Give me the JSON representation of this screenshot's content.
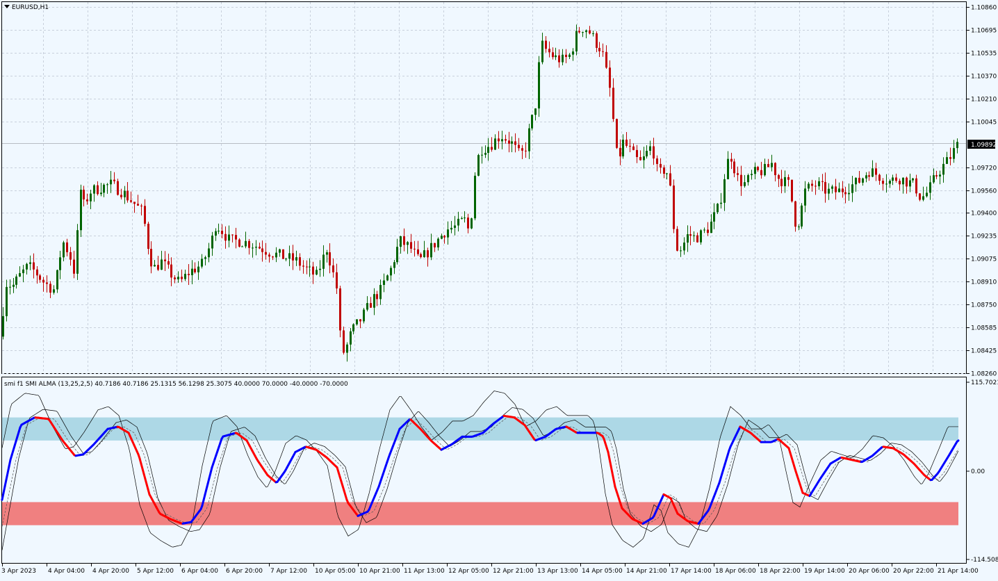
{
  "window": {
    "symbol_label": "EURUSD,H1"
  },
  "price_axis": {
    "ticks": [
      "1.10860",
      "1.10695",
      "1.10535",
      "1.10370",
      "1.10210",
      "1.10045",
      "1.09720",
      "1.09560",
      "1.09400",
      "1.09235",
      "1.09075",
      "1.08910",
      "1.08750",
      "1.08585",
      "1.08425",
      "1.08260"
    ],
    "current_price": "1.09892"
  },
  "indicator": {
    "label": "smi f1 SMI ALMA (13,25,2,5) 40.7186 40.7186 25.1315 56.1298 25.3075 40.0000 70.0000 -40.0000 -70.0000",
    "axis_top": "115.7021",
    "axis_zero": "0.00",
    "axis_bottom": "-114.5082",
    "upper_zone": [
      40,
      70
    ],
    "lower_zone": [
      -40,
      -70
    ]
  },
  "time_axis": {
    "labels": [
      "3 Apr 2023",
      "4 Apr 04:00",
      "4 Apr 20:00",
      "5 Apr 12:00",
      "6 Apr 04:00",
      "6 Apr 20:00",
      "7 Apr 12:00",
      "10 Apr 05:00",
      "10 Apr 21:00",
      "11 Apr 13:00",
      "12 Apr 05:00",
      "12 Apr 21:00",
      "13 Apr 13:00",
      "14 Apr 05:00",
      "14 Apr 21:00",
      "17 Apr 14:00",
      "18 Apr 06:00",
      "18 Apr 22:00",
      "19 Apr 14:00",
      "20 Apr 06:00",
      "20 Apr 22:00",
      "21 Apr 14:00"
    ]
  },
  "colors": {
    "background": "#f0f8ff",
    "bull_candle": "#006400",
    "bear_candle": "#c00000",
    "smi_up": "#0000ff",
    "smi_down": "#ff0000",
    "upper_zone": "#add8e6",
    "lower_zone": "#f08080",
    "grid": "#c8d0dc"
  },
  "chart_data": [
    {
      "type": "candlestick",
      "title": "EURUSD,H1",
      "ylim": [
        1.0826,
        1.1086
      ],
      "close_path": [
        [
          0,
          1.0852
        ],
        [
          8,
          1.089
        ],
        [
          18,
          1.0888
        ],
        [
          28,
          1.0895
        ],
        [
          40,
          1.0902
        ],
        [
          50,
          1.0898
        ],
        [
          64,
          1.089
        ],
        [
          78,
          1.0885
        ],
        [
          90,
          1.092
        ],
        [
          100,
          1.091
        ],
        [
          108,
          1.0895
        ],
        [
          114,
          1.096
        ],
        [
          120,
          1.0945
        ],
        [
          130,
          1.0955
        ],
        [
          145,
          1.0958
        ],
        [
          160,
          1.096
        ],
        [
          175,
          1.0955
        ],
        [
          190,
          1.0948
        ],
        [
          205,
          1.094
        ],
        [
          212,
          1.0918
        ],
        [
          220,
          1.09
        ],
        [
          232,
          1.0905
        ],
        [
          245,
          1.0897
        ],
        [
          258,
          1.089
        ],
        [
          272,
          1.0898
        ],
        [
          290,
          1.0903
        ],
        [
          303,
          1.0918
        ],
        [
          310,
          1.0932
        ],
        [
          318,
          1.0928
        ],
        [
          330,
          1.092
        ],
        [
          345,
          1.092
        ],
        [
          360,
          1.0918
        ],
        [
          375,
          1.0915
        ],
        [
          388,
          1.0912
        ],
        [
          398,
          1.091
        ],
        [
          412,
          1.0908
        ],
        [
          425,
          1.0906
        ],
        [
          440,
          1.09
        ],
        [
          455,
          1.0895
        ],
        [
          470,
          1.0915
        ],
        [
          485,
          1.0885
        ],
        [
          490,
          1.0845
        ],
        [
          495,
          1.084
        ],
        [
          505,
          1.0855
        ],
        [
          520,
          1.0865
        ],
        [
          535,
          1.0878
        ],
        [
          548,
          1.0885
        ],
        [
          562,
          1.09
        ],
        [
          575,
          1.092
        ],
        [
          590,
          1.0915
        ],
        [
          603,
          1.0905
        ],
        [
          615,
          1.0912
        ],
        [
          628,
          1.092
        ],
        [
          642,
          1.0928
        ],
        [
          655,
          1.093
        ],
        [
          668,
          1.0935
        ],
        [
          676,
          1.0925
        ],
        [
          682,
          1.0965
        ],
        [
          690,
          1.0985
        ],
        [
          705,
          1.0988
        ],
        [
          720,
          1.0995
        ],
        [
          735,
          1.099
        ],
        [
          748,
          1.098
        ],
        [
          755,
          1.0985
        ],
        [
          762,
          1.1
        ],
        [
          770,
          1.1015
        ],
        [
          778,
          1.106
        ],
        [
          786,
          1.1055
        ],
        [
          798,
          1.105
        ],
        [
          810,
          1.1048
        ],
        [
          820,
          1.1052
        ],
        [
          830,
          1.1068
        ],
        [
          840,
          1.1072
        ],
        [
          848,
          1.1068
        ],
        [
          858,
          1.106
        ],
        [
          866,
          1.1055
        ],
        [
          872,
          1.104
        ],
        [
          878,
          1.1025
        ],
        [
          884,
          1.0995
        ],
        [
          888,
          1.0975
        ],
        [
          896,
          1.099
        ],
        [
          905,
          1.0985
        ],
        [
          914,
          1.0978
        ],
        [
          922,
          1.0975
        ],
        [
          930,
          1.0982
        ],
        [
          938,
          1.0988
        ],
        [
          945,
          1.097
        ],
        [
          950,
          1.0968
        ],
        [
          958,
          1.0972
        ],
        [
          965,
          1.0955
        ],
        [
          970,
          1.0925
        ],
        [
          975,
          1.0912
        ],
        [
          980,
          1.0915
        ],
        [
          990,
          1.0925
        ],
        [
          1000,
          1.0922
        ],
        [
          1010,
          1.0925
        ],
        [
          1020,
          1.093
        ],
        [
          1035,
          1.0945
        ],
        [
          1045,
          1.0975
        ],
        [
          1052,
          1.098
        ],
        [
          1060,
          1.0965
        ],
        [
          1070,
          1.096
        ],
        [
          1085,
          1.0968
        ],
        [
          1100,
          1.097
        ],
        [
          1110,
          1.0975
        ],
        [
          1118,
          1.0965
        ],
        [
          1128,
          1.0962
        ],
        [
          1135,
          1.096
        ],
        [
          1140,
          1.0945
        ],
        [
          1145,
          1.093
        ],
        [
          1150,
          1.0935
        ],
        [
          1158,
          1.0955
        ],
        [
          1165,
          1.0958
        ],
        [
          1175,
          1.096
        ],
        [
          1190,
          1.0955
        ],
        [
          1205,
          1.0955
        ],
        [
          1220,
          1.0958
        ],
        [
          1235,
          1.0962
        ],
        [
          1250,
          1.097
        ],
        [
          1258,
          1.0968
        ],
        [
          1268,
          1.0965
        ],
        [
          1280,
          1.0962
        ],
        [
          1292,
          1.0965
        ],
        [
          1305,
          1.0962
        ],
        [
          1315,
          1.096
        ],
        [
          1325,
          1.095
        ],
        [
          1335,
          1.0955
        ],
        [
          1345,
          1.0965
        ],
        [
          1355,
          1.0972
        ],
        [
          1365,
          1.0978
        ],
        [
          1378,
          1.0989
        ]
      ]
    },
    {
      "type": "line",
      "title": "smi f1 SMI ALMA (13,25,2,5)",
      "ylim": [
        -114.5082,
        115.7021
      ],
      "bands": [
        [
          40,
          70
        ],
        [
          -40,
          -70
        ]
      ],
      "smi_path": [
        [
          0,
          -50
        ],
        [
          15,
          15
        ],
        [
          30,
          60
        ],
        [
          50,
          70
        ],
        [
          70,
          68
        ],
        [
          90,
          40
        ],
        [
          108,
          20
        ],
        [
          120,
          22
        ],
        [
          135,
          35
        ],
        [
          155,
          55
        ],
        [
          170,
          58
        ],
        [
          185,
          50
        ],
        [
          200,
          20
        ],
        [
          215,
          -30
        ],
        [
          230,
          -55
        ],
        [
          245,
          -62
        ],
        [
          262,
          -68
        ],
        [
          275,
          -66
        ],
        [
          290,
          -48
        ],
        [
          305,
          5
        ],
        [
          320,
          45
        ],
        [
          340,
          50
        ],
        [
          355,
          40
        ],
        [
          370,
          15
        ],
        [
          385,
          -5
        ],
        [
          398,
          -15
        ],
        [
          410,
          0
        ],
        [
          425,
          25
        ],
        [
          440,
          32
        ],
        [
          455,
          28
        ],
        [
          470,
          18
        ],
        [
          485,
          5
        ],
        [
          500,
          -40
        ],
        [
          515,
          -58
        ],
        [
          530,
          -52
        ],
        [
          545,
          -20
        ],
        [
          560,
          20
        ],
        [
          575,
          55
        ],
        [
          590,
          68
        ],
        [
          605,
          55
        ],
        [
          620,
          40
        ],
        [
          635,
          28
        ],
        [
          650,
          35
        ],
        [
          665,
          45
        ],
        [
          680,
          45
        ],
        [
          695,
          50
        ],
        [
          710,
          62
        ],
        [
          725,
          72
        ],
        [
          740,
          70
        ],
        [
          755,
          60
        ],
        [
          770,
          40
        ],
        [
          785,
          45
        ],
        [
          800,
          55
        ],
        [
          815,
          58
        ],
        [
          830,
          50
        ],
        [
          845,
          50
        ],
        [
          860,
          50
        ],
        [
          868,
          45
        ],
        [
          875,
          25
        ],
        [
          885,
          -20
        ],
        [
          895,
          -48
        ],
        [
          910,
          -62
        ],
        [
          925,
          -68
        ],
        [
          940,
          -60
        ],
        [
          955,
          -30
        ],
        [
          965,
          -35
        ],
        [
          975,
          -55
        ],
        [
          990,
          -65
        ],
        [
          1005,
          -68
        ],
        [
          1020,
          -50
        ],
        [
          1035,
          -15
        ],
        [
          1050,
          30
        ],
        [
          1065,
          58
        ],
        [
          1080,
          50
        ],
        [
          1095,
          38
        ],
        [
          1110,
          38
        ],
        [
          1120,
          42
        ],
        [
          1135,
          30
        ],
        [
          1145,
          0
        ],
        [
          1155,
          -28
        ],
        [
          1165,
          -32
        ],
        [
          1180,
          -10
        ],
        [
          1195,
          10
        ],
        [
          1210,
          18
        ],
        [
          1225,
          15
        ],
        [
          1240,
          12
        ],
        [
          1255,
          20
        ],
        [
          1270,
          32
        ],
        [
          1285,
          30
        ],
        [
          1300,
          22
        ],
        [
          1315,
          10
        ],
        [
          1330,
          -5
        ],
        [
          1340,
          -12
        ],
        [
          1350,
          -2
        ],
        [
          1365,
          20
        ],
        [
          1378,
          40
        ]
      ]
    }
  ]
}
